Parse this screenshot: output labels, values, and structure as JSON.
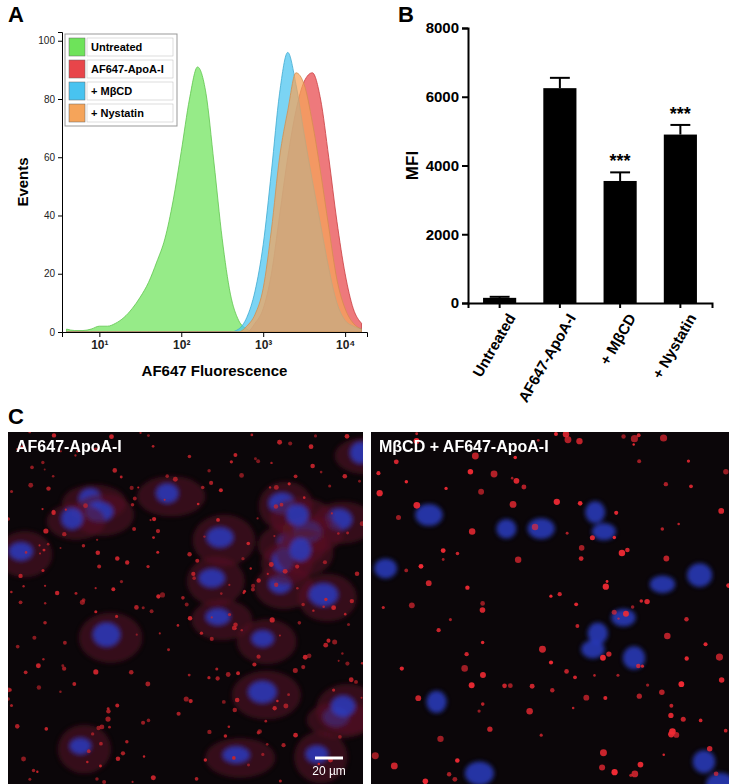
{
  "chart_data": [
    {
      "type": "area",
      "title": "A",
      "x_label": "AF647 Fluorescence",
      "y_label": "Events",
      "log": "x",
      "x": [
        3.98,
        5.01,
        6.31,
        7.94,
        10,
        12.6,
        15.8,
        20.0,
        25.1,
        31.6,
        39.8,
        50.1,
        63.1,
        79.4,
        100,
        126,
        158,
        200,
        251,
        316,
        398,
        501,
        631,
        794,
        1000,
        1259,
        1585,
        1995,
        2512,
        3162,
        3981,
        5012,
        6310,
        7943,
        10000,
        12589,
        15849
      ],
      "xlim": [
        3.5,
        18500
      ],
      "xticks": [
        {
          "value": 10,
          "label": "10¹"
        },
        {
          "value": 100,
          "label": "10²"
        },
        {
          "value": 1000,
          "label": "10³"
        },
        {
          "value": 10000,
          "label": "10⁴"
        }
      ],
      "ylim": [
        0,
        103
      ],
      "yticks": [
        0,
        20,
        40,
        60,
        80,
        100
      ],
      "legend": "upper left",
      "series": [
        {
          "name": "Untreated",
          "color": "#6ee35a",
          "values": [
            1,
            0.5,
            0.5,
            1,
            2,
            2,
            3,
            5,
            8,
            12,
            17,
            24,
            32,
            45,
            62,
            80,
            91,
            82,
            58,
            32,
            13,
            4,
            1,
            0,
            0,
            0,
            0,
            0,
            0,
            0,
            0,
            0,
            0,
            0,
            0,
            0,
            0
          ]
        },
        {
          "name": "AF647-ApoA-I",
          "color": "#e8454a",
          "values": [
            0,
            0,
            0,
            0,
            0,
            0,
            0,
            0,
            0,
            0,
            0,
            0,
            0,
            0,
            0,
            0,
            0,
            0,
            0,
            0,
            0,
            0,
            0,
            3,
            8,
            20,
            40,
            60,
            76,
            86,
            89,
            80,
            60,
            38,
            20,
            8,
            3
          ]
        },
        {
          "name": "+ MβCD",
          "color": "#48c3f0",
          "values": [
            0,
            0,
            0,
            0,
            0,
            0,
            0,
            0,
            0,
            0,
            0,
            0,
            0,
            0,
            0,
            0,
            0,
            0,
            0,
            0,
            0,
            1,
            5,
            14,
            30,
            55,
            82,
            96,
            85,
            68,
            52,
            37,
            22,
            10,
            4,
            2,
            1
          ]
        },
        {
          "name": "+ Nystatin",
          "color": "#f5a45a",
          "values": [
            0,
            0,
            0,
            0,
            0,
            0,
            0,
            0,
            0,
            0,
            0,
            0,
            0,
            0,
            0,
            0,
            0,
            0,
            0,
            0,
            0,
            0,
            2,
            6,
            15,
            35,
            60,
            76,
            89,
            85,
            72,
            55,
            36,
            18,
            8,
            3,
            1
          ]
        }
      ]
    },
    {
      "type": "bar",
      "title": "B",
      "y_label": "MFI",
      "categories": [
        "Untreated",
        "AF647-ApoA-I",
        "+ MβCD",
        "+ Nystatin"
      ],
      "values": [
        150,
        6250,
        3550,
        4900
      ],
      "errors": [
        30,
        300,
        250,
        280
      ],
      "color": "#000000",
      "ylim": [
        0,
        8000
      ],
      "yticks": [
        0,
        2000,
        4000,
        6000,
        8000
      ],
      "annotations": [
        {
          "x": "+ MβCD",
          "text": "***"
        },
        {
          "x": "+ Nystatin",
          "text": "***"
        }
      ]
    }
  ],
  "images": {
    "title": "C",
    "panels": [
      {
        "label": "AF647-ApoA-I"
      },
      {
        "label": "MβCD + AF647-ApoA-I"
      }
    ],
    "scale_bar": "20 µm"
  }
}
